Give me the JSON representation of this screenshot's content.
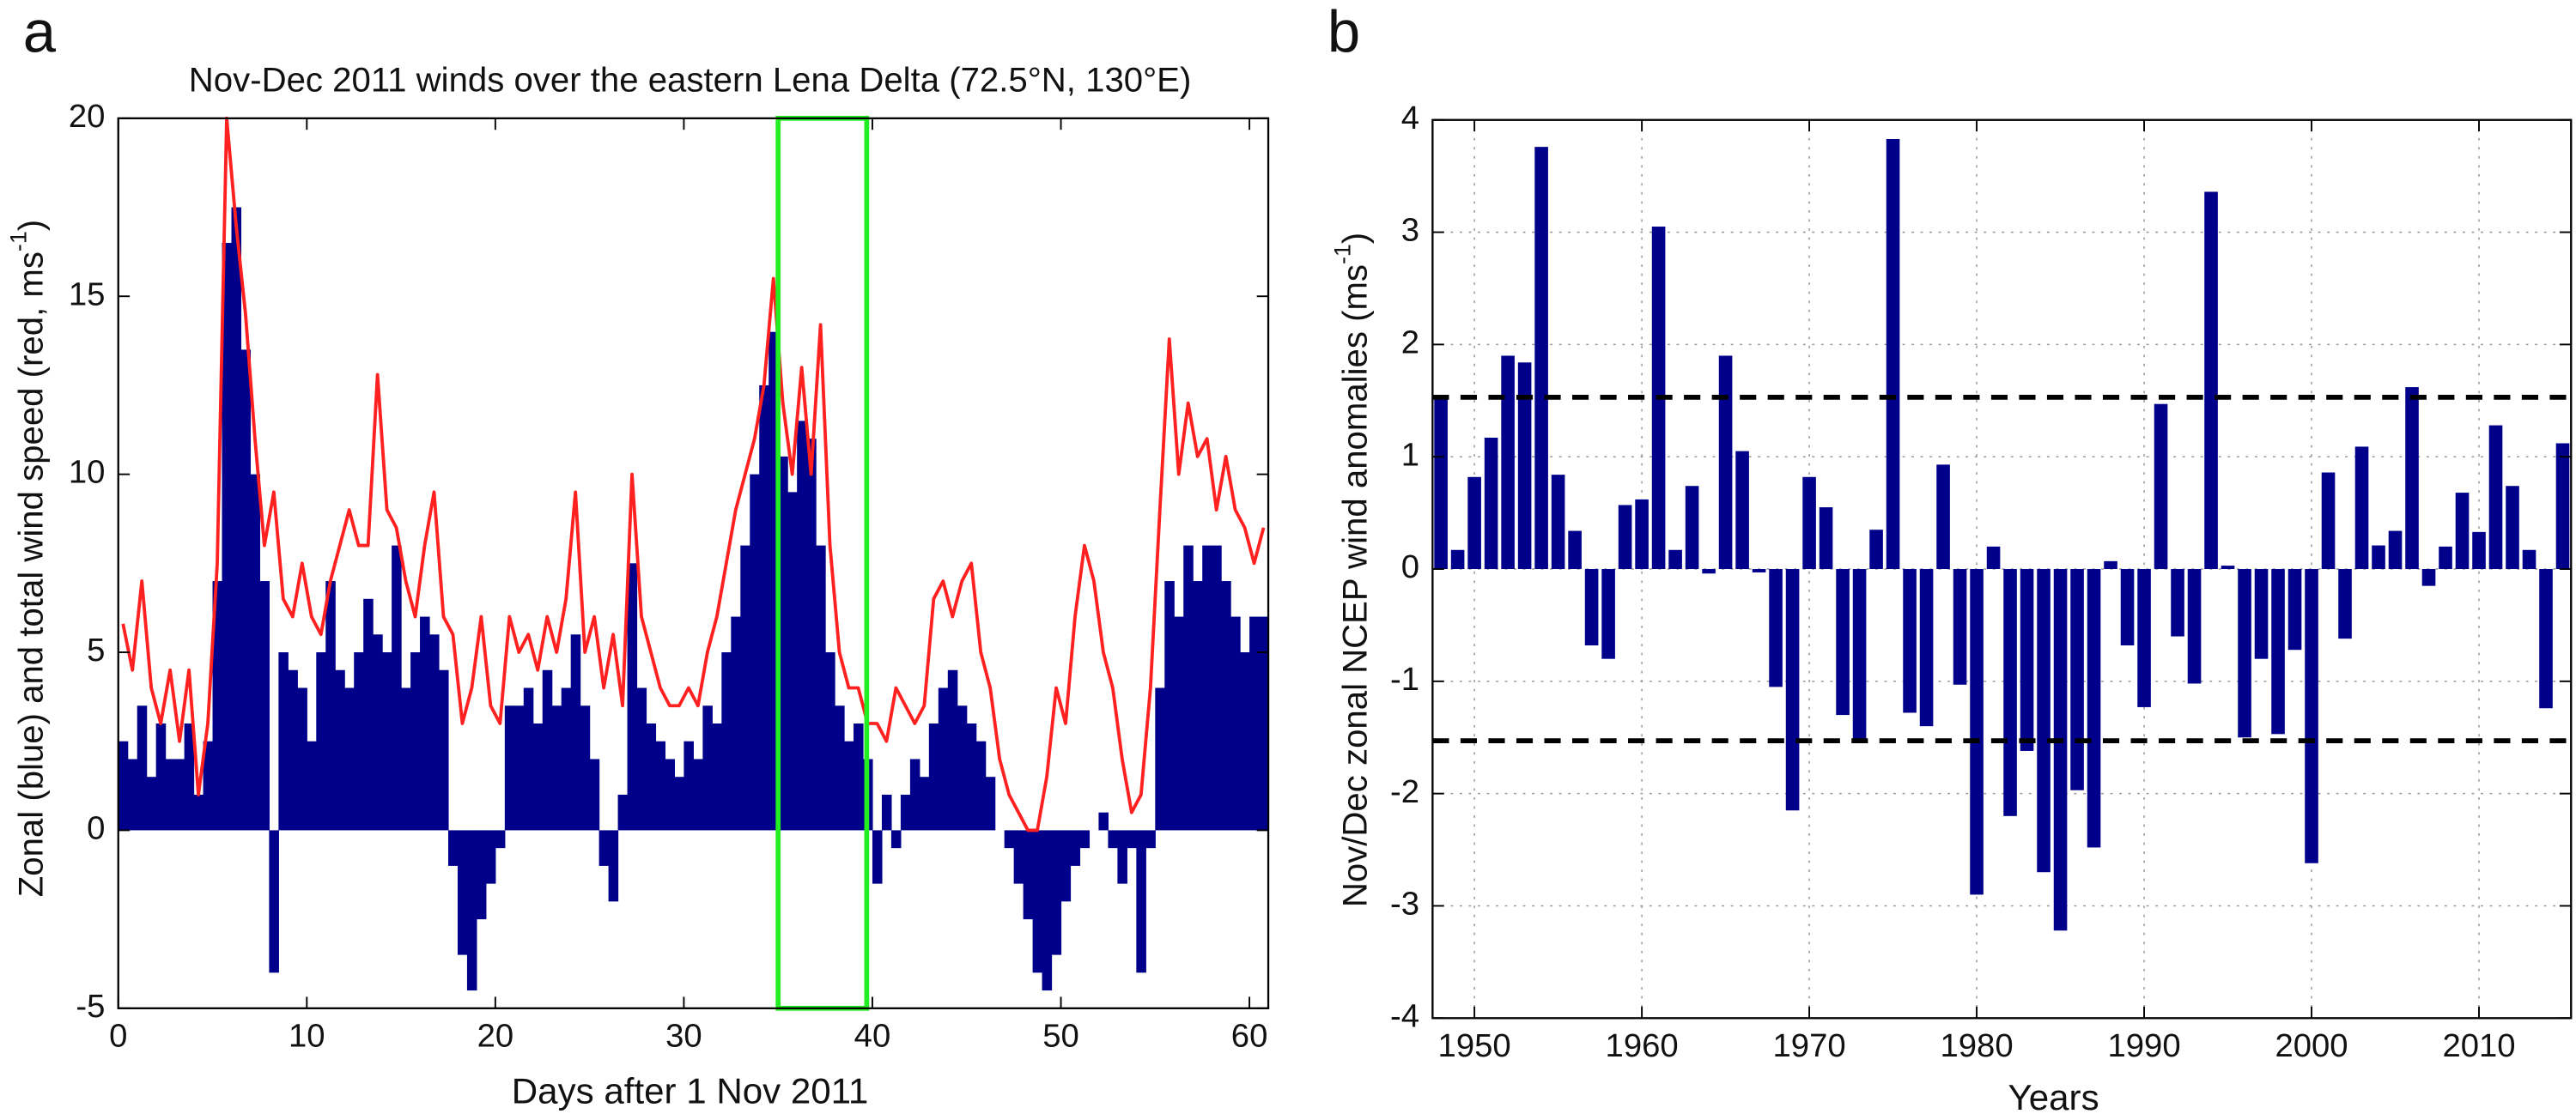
{
  "chart_data": [
    {
      "type": "bar",
      "panel_label": "a",
      "title": "Nov-Dec 2011 winds over the eastern Lena Delta (72.5°N, 130°E)",
      "xlabel": "Days after 1 Nov 2011",
      "ylabel": [
        "Zonal (blue) and total wind speed (red, ms",
        "-1",
        ")"
      ],
      "x": [
        0,
        0.5,
        1,
        1.5,
        2,
        2.5,
        3,
        3.5,
        4,
        4.5,
        5,
        5.5,
        6,
        6.5,
        7,
        7.5,
        8,
        8.5,
        9,
        9.5,
        10,
        10.5,
        11,
        11.5,
        12,
        12.5,
        13,
        13.5,
        14,
        14.5,
        15,
        15.5,
        16,
        16.5,
        17,
        17.5,
        18,
        18.5,
        19,
        19.5,
        20,
        20.5,
        21,
        21.5,
        22,
        22.5,
        23,
        23.5,
        24,
        24.5,
        25,
        25.5,
        26,
        26.5,
        27,
        27.5,
        28,
        28.5,
        29,
        29.5,
        30,
        30.5,
        31,
        31.5,
        32,
        32.5,
        33,
        33.5,
        34,
        34.5,
        35,
        35.5,
        36,
        36.5,
        37,
        37.5,
        38,
        38.5,
        39,
        39.5,
        40,
        40.5,
        41,
        41.5,
        42,
        42.5,
        43,
        43.5,
        44,
        44.5,
        45,
        45.5,
        46,
        46.5,
        47,
        47.5,
        48,
        48.5,
        49,
        49.5,
        50,
        50.5,
        51,
        51.5,
        52,
        52.5,
        53,
        53.5,
        54,
        54.5,
        55,
        55.5,
        56,
        56.5,
        57,
        57.5,
        58,
        58.5,
        59,
        59.5,
        60,
        60.5
      ],
      "series": [
        {
          "type": "bar",
          "color": "#00008b",
          "values": [
            2.5,
            2,
            3.5,
            1.5,
            3,
            2,
            2,
            3,
            1,
            2.5,
            7,
            16.5,
            17.5,
            13.5,
            10,
            7,
            -4,
            5,
            4.5,
            4,
            2.5,
            5,
            7,
            4.5,
            4,
            5,
            6.5,
            5.5,
            5,
            8,
            4,
            5,
            6,
            5.5,
            4.5,
            -1,
            -3.5,
            -4.5,
            -2.5,
            -1.5,
            -0.5,
            3.5,
            3.5,
            4,
            3,
            4.5,
            3.5,
            4,
            5.5,
            3.5,
            2,
            -1,
            -2,
            1,
            7.5,
            4,
            3,
            2.5,
            2,
            1.5,
            2.5,
            2,
            3.5,
            3,
            5,
            6,
            8,
            10,
            12.5,
            14,
            10.5,
            9.5,
            11.5,
            11,
            8,
            5,
            3.5,
            2.5,
            3,
            2,
            -1.5,
            1,
            -0.5,
            1,
            2,
            1.5,
            3,
            4,
            4.5,
            3.5,
            3,
            2.5,
            1.5,
            0,
            -0.5,
            -1.5,
            -2.5,
            -4,
            -4.5,
            -3.5,
            -2,
            -1,
            -0.5,
            0,
            0.5,
            -0.5,
            -1.5,
            -0.5,
            -4,
            -0.5,
            4,
            7,
            6,
            8,
            7,
            8,
            8,
            7,
            6,
            5,
            6,
            6
          ]
        },
        {
          "type": "line",
          "color": "#ff2020",
          "values": [
            5.8,
            4.5,
            7,
            4,
            3,
            4.5,
            2.5,
            4.5,
            1,
            3,
            7.5,
            20,
            17,
            14.5,
            11,
            8,
            9.5,
            6.5,
            6,
            7.5,
            6,
            5.5,
            7,
            8,
            9,
            8,
            8,
            12.8,
            9,
            8.5,
            7,
            6,
            8,
            9.5,
            6,
            5.5,
            3,
            4,
            6,
            3.5,
            3,
            6,
            5,
            5.5,
            4.5,
            6,
            5,
            6.5,
            9.5,
            5,
            6,
            4,
            5.5,
            3.5,
            10,
            6,
            5,
            4,
            3.5,
            3.5,
            4,
            3.5,
            5,
            6,
            7.5,
            9,
            10,
            11,
            12.5,
            15.5,
            12,
            10,
            13,
            10,
            14.2,
            8,
            5,
            4,
            4,
            3,
            3,
            2.5,
            4,
            3.5,
            3,
            3.5,
            6.5,
            7,
            6,
            7,
            7.5,
            5,
            4,
            2,
            1,
            0.5,
            0,
            0,
            1.5,
            4,
            3,
            6,
            8,
            7,
            5,
            4,
            2,
            0.5,
            1,
            4,
            9,
            13.8,
            10,
            12,
            10.5,
            11,
            9,
            10.5,
            9,
            8.5,
            7.5,
            8.5
          ]
        }
      ],
      "highlight_x": [
        35,
        39.7
      ],
      "highlight_color": "#22ee22",
      "xlim": [
        0,
        61
      ],
      "xticks": [
        0,
        10,
        20,
        30,
        40,
        50,
        60
      ],
      "ylim": [
        -5,
        20
      ],
      "yticks": [
        -5,
        0,
        5,
        10,
        15,
        20
      ],
      "grid": false
    },
    {
      "type": "bar",
      "panel_label": "b",
      "xlabel": "Years",
      "ylabel": [
        "Nov/Dec zonal NCEP wind anomalies (ms",
        "-1",
        ")"
      ],
      "x": [
        1948,
        1949,
        1950,
        1951,
        1952,
        1953,
        1954,
        1955,
        1956,
        1957,
        1958,
        1959,
        1960,
        1961,
        1962,
        1963,
        1964,
        1965,
        1966,
        1967,
        1968,
        1969,
        1970,
        1971,
        1972,
        1973,
        1974,
        1975,
        1976,
        1977,
        1978,
        1979,
        1980,
        1981,
        1982,
        1983,
        1984,
        1985,
        1986,
        1987,
        1988,
        1989,
        1990,
        1991,
        1992,
        1993,
        1994,
        1995,
        1996,
        1997,
        1998,
        1999,
        2000,
        2001,
        2002,
        2003,
        2004,
        2005,
        2006,
        2007,
        2008,
        2009,
        2010,
        2011,
        2012,
        2013,
        2014,
        2015
      ],
      "series": [
        {
          "type": "bar",
          "color": "#00008b",
          "values": [
            1.55,
            0.17,
            0.82,
            1.17,
            1.9,
            1.84,
            3.76,
            0.84,
            0.34,
            -0.68,
            -0.8,
            0.57,
            0.62,
            3.05,
            0.17,
            0.74,
            -0.04,
            1.9,
            1.05,
            -0.03,
            -1.05,
            -2.15,
            0.82,
            0.55,
            -1.3,
            -1.52,
            0.35,
            3.83,
            -1.28,
            -1.4,
            0.93,
            -1.03,
            -2.9,
            0.2,
            -2.2,
            -1.62,
            -2.7,
            -3.22,
            -1.97,
            -2.48,
            0.07,
            -0.68,
            -1.23,
            1.47,
            -0.6,
            -1.02,
            3.36,
            0.03,
            -1.5,
            -0.8,
            -1.47,
            -0.72,
            -2.62,
            0.86,
            -0.62,
            1.09,
            0.21,
            0.34,
            1.62,
            -0.15,
            0.2,
            0.68,
            0.33,
            1.28,
            0.74,
            0.17,
            -1.24,
            1.12
          ]
        }
      ],
      "reference_lines": [
        1.53,
        -1.53
      ],
      "xlim": [
        1947.5,
        2015.5
      ],
      "xticks": [
        1950,
        1960,
        1970,
        1980,
        1990,
        2000,
        2010
      ],
      "ylim": [
        -4,
        4
      ],
      "yticks": [
        -4,
        -3,
        -2,
        -1,
        0,
        1,
        2,
        3,
        4
      ],
      "grid": true
    }
  ]
}
